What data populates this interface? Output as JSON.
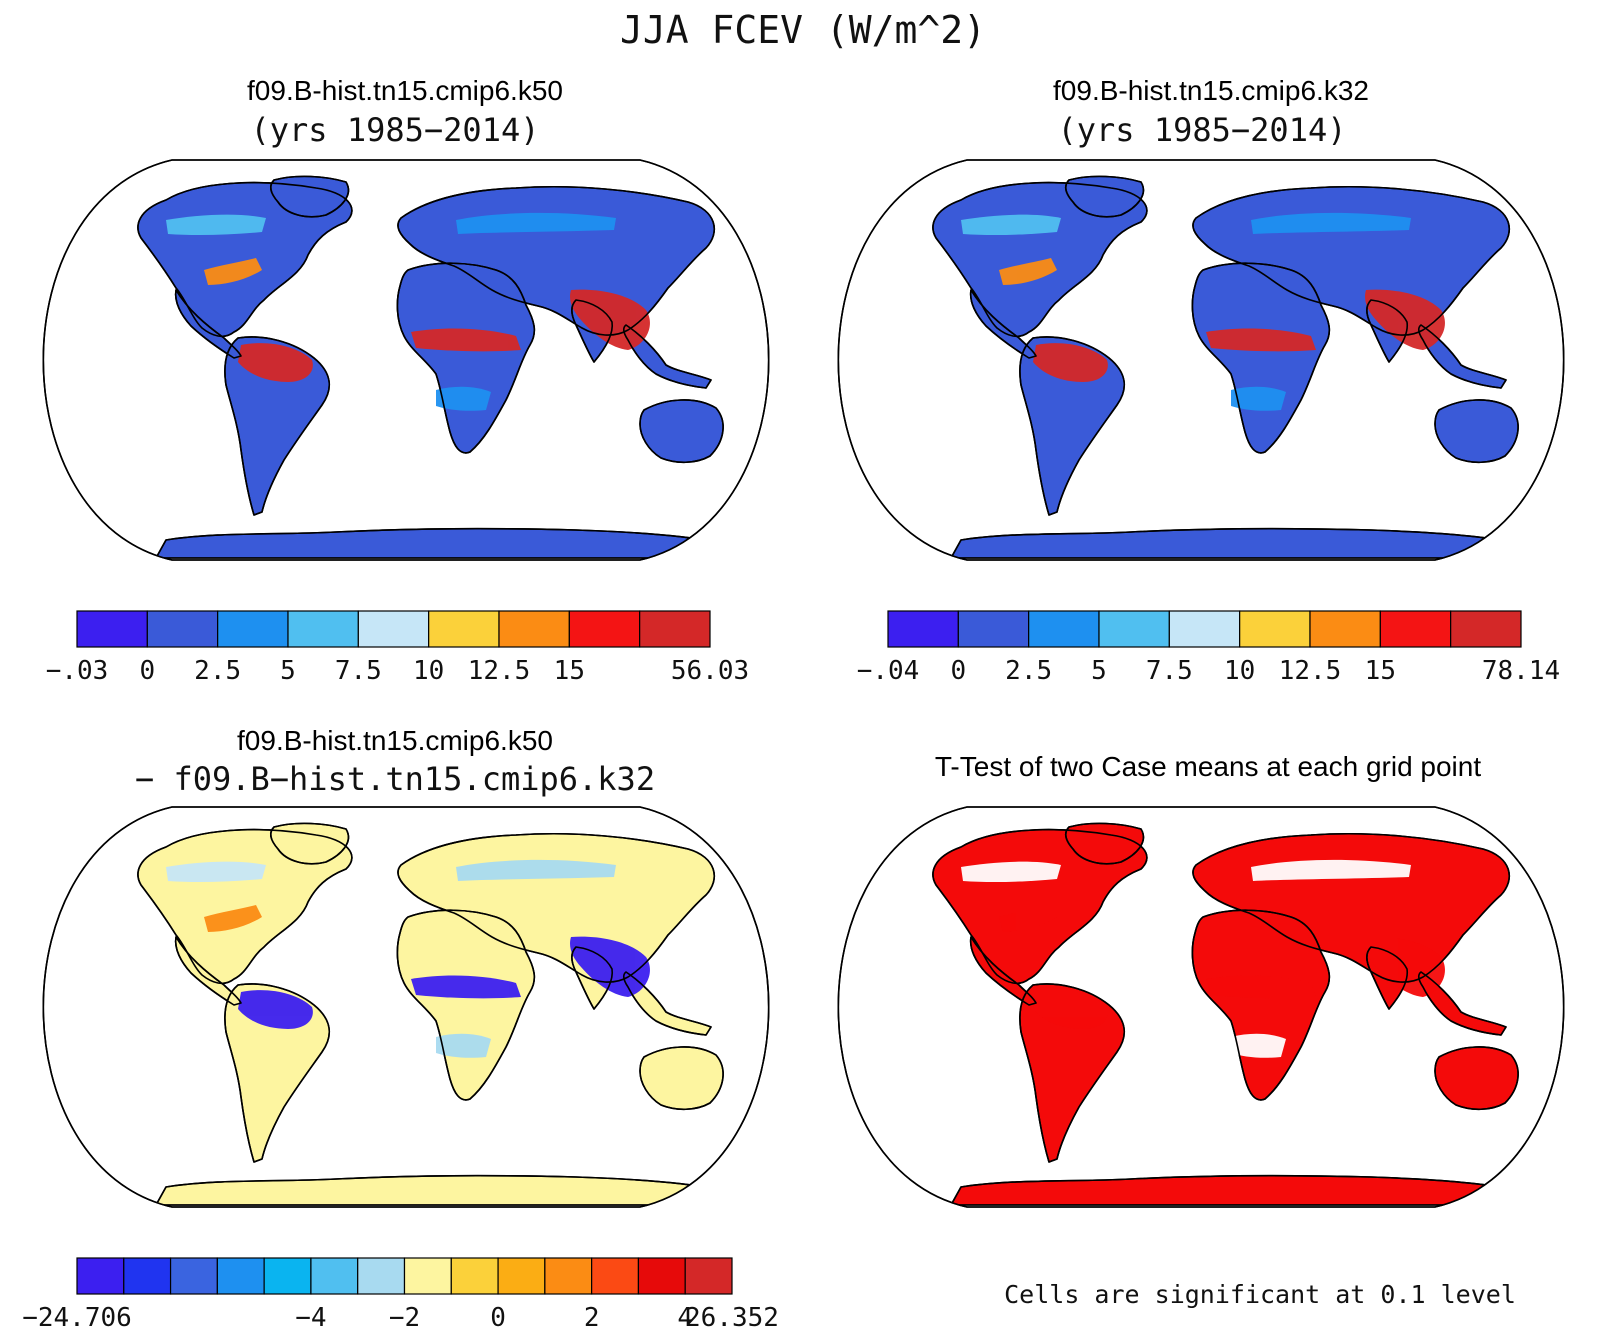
{
  "figure": {
    "title": "JJA FCEV (W/m^2)"
  },
  "panels": [
    {
      "id": "k50",
      "title": "f09.B-hist.tn15.cmip6.k50",
      "subtitle": "(yrs 1985−2014)",
      "colorbar": {
        "colors": [
          "#3c1ff0",
          "#3a5ad8",
          "#1e90f0",
          "#50bff0",
          "#c6e6f7",
          "#fbd13a",
          "#fb8c14",
          "#f41414",
          "#d42828"
        ],
        "labels": [
          "−.03",
          "0",
          "2.5",
          "5",
          "7.5",
          "10",
          "12.5",
          "15",
          "56.03"
        ]
      }
    },
    {
      "id": "k32",
      "title": "f09.B-hist.tn15.cmip6.k32",
      "subtitle": "(yrs 1985−2014)",
      "colorbar": {
        "colors": [
          "#3c1ff0",
          "#3a5ad8",
          "#1e90f0",
          "#50bff0",
          "#c6e6f7",
          "#fbd13a",
          "#fb8c14",
          "#f41414",
          "#d42828"
        ],
        "labels": [
          "−.04",
          "0",
          "2.5",
          "5",
          "7.5",
          "10",
          "12.5",
          "15",
          "78.14"
        ]
      }
    },
    {
      "id": "diff",
      "title": "f09.B-hist.tn15.cmip6.k50",
      "subtitle": "− f09.B−hist.tn15.cmip6.k32",
      "colorbar": {
        "colors": [
          "#3c1ff0",
          "#2034f0",
          "#3a64e0",
          "#1e90f0",
          "#0ab4f0",
          "#50bff0",
          "#a8daf0",
          "#fdf5a0",
          "#fbd13a",
          "#fbad14",
          "#fb8c14",
          "#fb4a14",
          "#e60a0a",
          "#d42828"
        ],
        "labels": [
          "−24.706",
          "−4",
          "−2",
          "0",
          "2",
          "4",
          "26.352"
        ]
      }
    },
    {
      "id": "ttest",
      "title": "T-Test of two Case means at each grid point",
      "note": "Cells are significant at 0.1 level"
    }
  ],
  "map_colors": {
    "k50": {
      "base": "#3a5ad8",
      "trop": "#d42828",
      "mid": "#1e90f0",
      "warm": "#fb8c14",
      "light": "#50bff0"
    },
    "k32": {
      "base": "#3a5ad8",
      "trop": "#d42828",
      "mid": "#1e90f0",
      "warm": "#fb8c14",
      "light": "#50bff0"
    },
    "diff": {
      "base": "#fdf5a0",
      "trop": "#3c1ff0",
      "mid": "#a8daf0",
      "warm": "#fb8c14",
      "light": "#c6e6f7"
    },
    "ttest": {
      "base": "#f40a0a",
      "trop": "#f40a0a",
      "mid": "#ffffff",
      "warm": "#f40a0a",
      "light": "#ffffff"
    }
  }
}
